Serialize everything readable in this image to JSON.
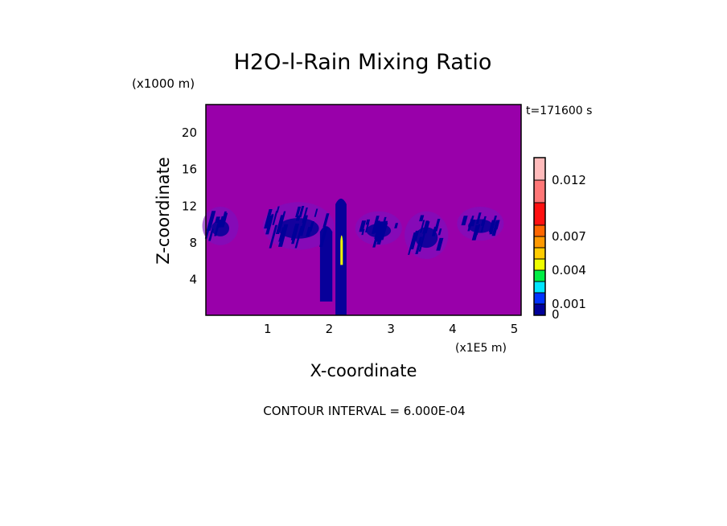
{
  "chart_data": {
    "type": "heatmap",
    "title": "H2O-l-Rain Mixing Ratio",
    "time_label": "t=171600 s",
    "xlabel": "X-coordinate",
    "x_units": "(x1E5 m)",
    "ylabel": "Z-coordinate",
    "y_units": "(x1000 m)",
    "xlim": [
      0,
      5.11
    ],
    "ylim": [
      0,
      23
    ],
    "xticks": [
      "1",
      "2",
      "3",
      "4",
      "5"
    ],
    "xtick_values": [
      1,
      2,
      3,
      4,
      5
    ],
    "yticks": [
      "4",
      "8",
      "12",
      "16",
      "20"
    ],
    "ytick_values": [
      4,
      8,
      12,
      16,
      20
    ],
    "background_color": "#9900aa",
    "footer": "CONTOUR INTERVAL = 6.000E-04",
    "colorbar": {
      "levels": [
        0,
        0.001,
        0.002,
        0.003,
        0.004,
        0.005,
        0.006,
        0.007,
        0.008,
        0.01,
        0.012,
        0.014
      ],
      "colors": [
        "#000099",
        "#0033ff",
        "#00e5ff",
        "#00ee44",
        "#eeff00",
        "#ffcc00",
        "#ff9900",
        "#ff6600",
        "#ff1111",
        "#ff7777",
        "#ffbbbb"
      ],
      "tick_labels": [
        "0",
        "0.001",
        "0.004",
        "0.007",
        "0.012"
      ],
      "tick_values": [
        0,
        0.001,
        0.004,
        0.007,
        0.012
      ]
    },
    "features": [
      {
        "name": "rain-band-left",
        "x": [
          0.02,
          0.45
        ],
        "z": [
          8,
          11.5
        ],
        "value": 0.0005
      },
      {
        "name": "rain-band-mid-left",
        "x": [
          1.0,
          2.0
        ],
        "z": [
          7.5,
          12
        ],
        "value": 0.0005
      },
      {
        "name": "rain-shaft-1",
        "x": [
          1.85,
          2.05
        ],
        "z": [
          1.5,
          10
        ],
        "value": 0.0005
      },
      {
        "name": "rain-shaft-core",
        "x": [
          2.1,
          2.28
        ],
        "z": [
          0,
          13
        ],
        "value": 0.0008
      },
      {
        "name": "rain-core-peak",
        "x": [
          2.18,
          2.22
        ],
        "z": [
          5.5,
          9
        ],
        "value": 0.004
      },
      {
        "name": "rain-band-3",
        "x": [
          2.5,
          3.1
        ],
        "z": [
          8,
          11
        ],
        "value": 0.0005
      },
      {
        "name": "rain-band-4",
        "x": [
          3.3,
          3.85
        ],
        "z": [
          6.5,
          11
        ],
        "value": 0.0005
      },
      {
        "name": "rain-band-5",
        "x": [
          4.15,
          4.75
        ],
        "z": [
          8.5,
          11.5
        ],
        "value": 0.0005
      }
    ]
  }
}
